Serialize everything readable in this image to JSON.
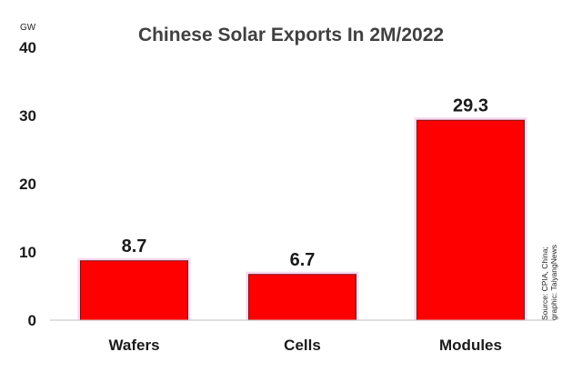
{
  "chart_data": {
    "type": "bar",
    "title": "Chinese Solar Exports In 2M/2022",
    "unit_label": "GW",
    "categories": [
      "Wafers",
      "Cells",
      "Modules"
    ],
    "values": [
      8.7,
      6.7,
      29.3
    ],
    "data_labels": [
      "8.7",
      "6.7",
      "29.3"
    ],
    "ylim": [
      0,
      40
    ],
    "yticks": [
      0,
      10,
      20,
      30,
      40
    ],
    "grid": false,
    "bar_color": "#ff0000",
    "bar_glow_color": "#f6d7f0",
    "source_lines": [
      "Source: CPIA, China;",
      "graphic: TaiyangNews"
    ]
  }
}
